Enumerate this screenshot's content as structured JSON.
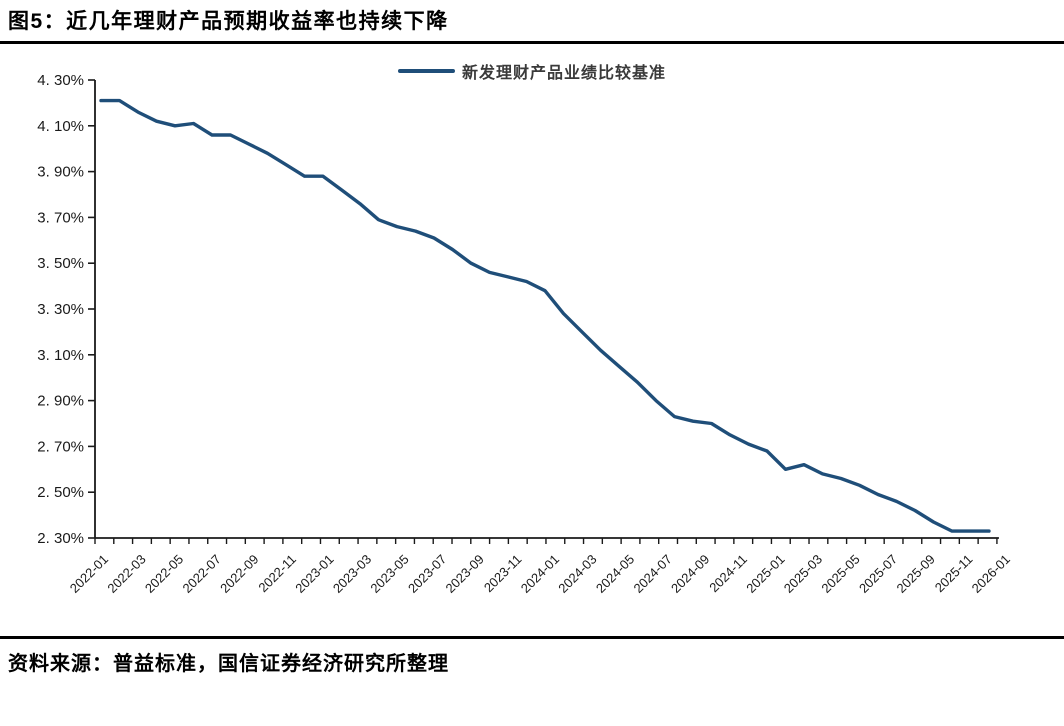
{
  "header": {
    "title": "图5：近几年理财产品预期收益率也持续下降"
  },
  "footer": {
    "source": "资料来源：普益标准，国信证券经济研究所整理"
  },
  "chart_data": {
    "type": "line",
    "title": "图5：近几年理财产品预期收益率也持续下降",
    "xlabel": "",
    "ylabel": "",
    "ylim": [
      2.3,
      4.3
    ],
    "ytick_step": 0.2,
    "ytick_labels": [
      "4. 30%",
      "4. 10%",
      "3. 90%",
      "3. 70%",
      "3. 50%",
      "3. 30%",
      "3. 10%",
      "2. 90%",
      "2. 70%",
      "2. 50%",
      "2. 30%"
    ],
    "xtick_label_every": 2,
    "grid": false,
    "legend_position": "top-center",
    "axis_color": "#1a1a1a",
    "categories": [
      "2022-01",
      "2022-02",
      "2022-03",
      "2022-04",
      "2022-05",
      "2022-06",
      "2022-07",
      "2022-08",
      "2022-09",
      "2022-10",
      "2022-11",
      "2022-12",
      "2023-01",
      "2023-02",
      "2023-03",
      "2023-04",
      "2023-05",
      "2023-06",
      "2023-07",
      "2023-08",
      "2023-09",
      "2023-10",
      "2023-11",
      "2023-12",
      "2024-01",
      "2024-02",
      "2024-03",
      "2024-04",
      "2024-05",
      "2024-06",
      "2024-07",
      "2024-08",
      "2024-09",
      "2024-10",
      "2024-11",
      "2024-12",
      "2025-01",
      "2025-02",
      "2025-03",
      "2025-04",
      "2025-05",
      "2025-06",
      "2025-07",
      "2025-08",
      "2025-09",
      "2025-10",
      "2025-11",
      "2025-12",
      "2026-01"
    ],
    "series": [
      {
        "name": "新发理财产品业绩比较基准",
        "color": "#1F4E79",
        "values": [
          4.21,
          4.21,
          4.16,
          4.12,
          4.1,
          4.11,
          4.06,
          4.06,
          4.02,
          3.98,
          3.93,
          3.88,
          3.88,
          3.82,
          3.76,
          3.69,
          3.66,
          3.64,
          3.61,
          3.56,
          3.5,
          3.46,
          3.44,
          3.42,
          3.38,
          3.28,
          3.2,
          3.12,
          3.05,
          2.98,
          2.9,
          2.83,
          2.81,
          2.8,
          2.75,
          2.71,
          2.68,
          2.6,
          2.62,
          2.58,
          2.56,
          2.53,
          2.49,
          2.46,
          2.42,
          2.37,
          2.33,
          2.33,
          2.33
        ]
      }
    ]
  }
}
